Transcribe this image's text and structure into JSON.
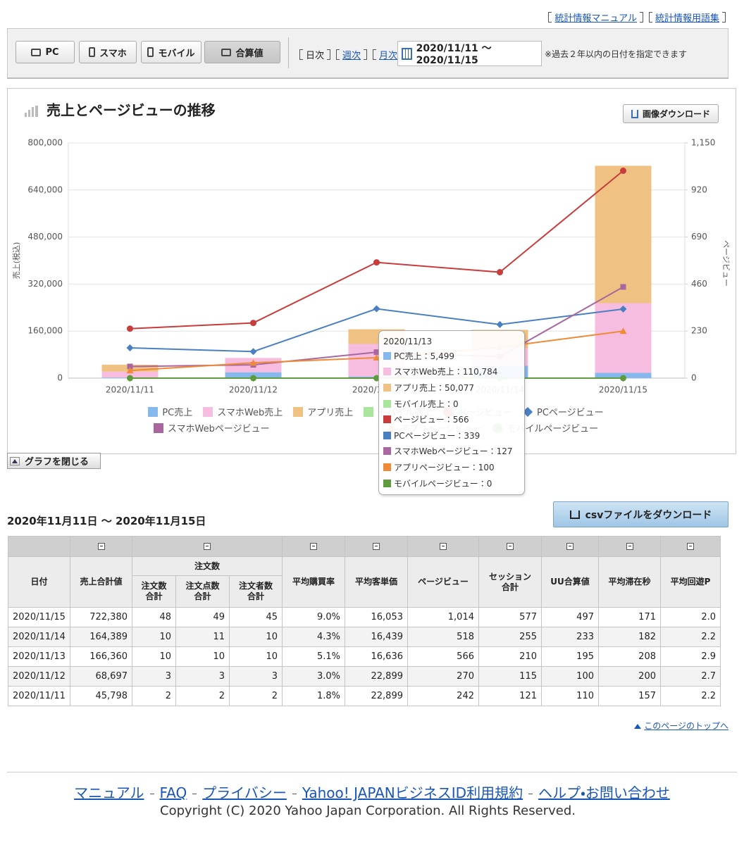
{
  "header_links": [
    "統計情報マニュアル",
    "統計情報用語集"
  ],
  "toolbar": {
    "devices": [
      "PC",
      "スマホ",
      "モバイル",
      "合算値"
    ],
    "periods": [
      "日次",
      "週次",
      "月次"
    ],
    "date_range": "2020/11/11 〜 2020/11/15",
    "note": "※過去２年以内の日付を指定できます"
  },
  "download_image": "画像ダウンロード",
  "close_chart": "グラフを閉じる",
  "chart_data": {
    "type": "bar",
    "stacked": true,
    "title": "売上とページビューの推移",
    "ylabel": "売上(税込)",
    "y2label": "ページビュー",
    "categories": [
      "2020/11/11",
      "2020/11/12",
      "2020/11/13",
      "2020/11/14",
      "2020/11/15"
    ],
    "ylim": [
      0,
      800000
    ],
    "yticks": [
      0,
      {
        "value": 160000,
        "label": "160,000"
      },
      {
        "value": 320000,
        "label": "320,000"
      },
      {
        "value": 480000,
        "label": "480,000"
      },
      {
        "value": 640000,
        "label": "640,000"
      },
      {
        "value": 800000,
        "label": "800,000"
      }
    ],
    "y2lim": [
      0,
      1150
    ],
    "y2ticks": [
      0,
      230,
      460,
      690,
      920,
      {
        "value": 1150,
        "label": "1,150"
      }
    ],
    "grid": true,
    "series": [
      {
        "name": "PC売上",
        "type": "bar",
        "color": "#85b8ec",
        "values": [
          2000,
          20000,
          5499,
          42000,
          18000
        ]
      },
      {
        "name": "スマホWeb売上",
        "type": "bar",
        "color": "#f6bde0",
        "values": [
          20000,
          48697,
          110784,
          60000,
          237000
        ]
      },
      {
        "name": "アプリ売上",
        "type": "bar",
        "color": "#efc283",
        "values": [
          23798,
          0,
          50077,
          62389,
          467380
        ]
      },
      {
        "name": "モバイル売上",
        "type": "bar",
        "color": "#a9e59a",
        "values": [
          0,
          0,
          0,
          0,
          0
        ]
      },
      {
        "name": "ページビュー",
        "type": "line",
        "axis": "y2",
        "marker": "circle",
        "color": "#c93c3c",
        "values": [
          242,
          270,
          566,
          518,
          1014
        ]
      },
      {
        "name": "PCページビュー",
        "type": "line",
        "axis": "y2",
        "marker": "diamond",
        "color": "#4a7fc1",
        "values": [
          148,
          130,
          339,
          262,
          338
        ]
      },
      {
        "name": "スマホWebページビュー",
        "type": "line",
        "axis": "y2",
        "marker": "square",
        "color": "#a8689f",
        "values": [
          57,
          65,
          127,
          105,
          446
        ]
      },
      {
        "name": "アプリページビュー",
        "type": "line",
        "axis": "y2",
        "marker": "triangle",
        "color": "#ef8a37",
        "values": [
          37,
          75,
          100,
          151,
          230
        ]
      },
      {
        "name": "モバイルページビュー",
        "type": "line",
        "axis": "y2",
        "marker": "circle",
        "color": "#5e9b3c",
        "values": [
          0,
          0,
          0,
          0,
          0
        ]
      }
    ],
    "tooltip": {
      "title": "2020/11/13",
      "items": [
        "PC売上：5,499",
        "スマホWeb売上：110,784",
        "アプリ売上：50,077",
        "モバイル売上：0",
        "ページビュー：566",
        "PCページビュー：339",
        "スマホWebページビュー：127",
        "アプリページビュー：100",
        "モバイルページビュー：0"
      ]
    }
  },
  "table": {
    "title": "2020年11月11日 〜 2020年11月15日",
    "csv_button": "csvファイルをダウンロード",
    "header_top": [
      "日付",
      "売上合計値",
      "注文数",
      "平均購買率",
      "平均客単価",
      "ページビュー",
      "セッション\n合計",
      "UU合算値",
      "平均滞在秒",
      "平均回遊P"
    ],
    "header_sub": [
      "注文数\n合計",
      "注文点数\n合計",
      "注文者数\n合計"
    ],
    "rows": [
      [
        "2020/11/15",
        "722,380",
        "48",
        "49",
        "45",
        "9.0%",
        "16,053",
        "1,014",
        "577",
        "497",
        "171",
        "2.0"
      ],
      [
        "2020/11/14",
        "164,389",
        "10",
        "11",
        "10",
        "4.3%",
        "16,439",
        "518",
        "255",
        "233",
        "182",
        "2.2"
      ],
      [
        "2020/11/13",
        "166,360",
        "10",
        "10",
        "10",
        "5.1%",
        "16,636",
        "566",
        "210",
        "195",
        "208",
        "2.9"
      ],
      [
        "2020/11/12",
        "68,697",
        "3",
        "3",
        "3",
        "3.0%",
        "22,899",
        "270",
        "115",
        "100",
        "200",
        "2.7"
      ],
      [
        "2020/11/11",
        "45,798",
        "2",
        "2",
        "2",
        "1.8%",
        "22,899",
        "242",
        "121",
        "110",
        "157",
        "2.2"
      ]
    ]
  },
  "page_top": "このページのトップへ",
  "footer": {
    "links": [
      "マニュアル",
      "FAQ",
      "プライバシー",
      "Yahoo! JAPANビジネスID利用規約",
      "ヘルプ・お問い合わせ"
    ],
    "copyright": "Copyright (C) 2020 Yahoo Japan Corporation. All Rights Reserved."
  }
}
